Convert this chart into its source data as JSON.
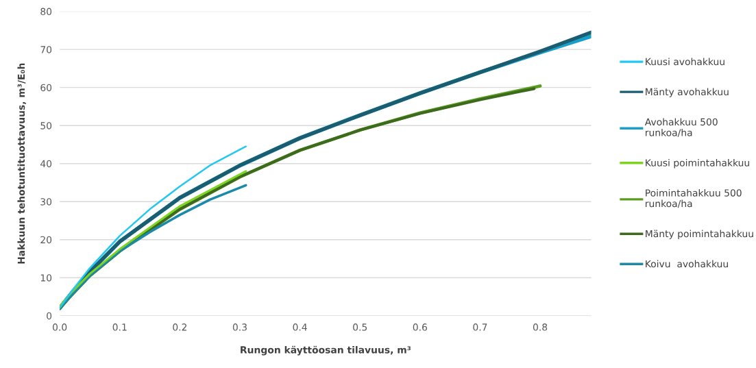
{
  "chart_data": {
    "type": "line",
    "xlabel": "Rungon käyttöosan tilavuus, m³",
    "ylabel": "Hakkuun tehotuntituottavuus, m³/E₀h",
    "xlim": [
      0,
      0.885
    ],
    "ylim": [
      0,
      80
    ],
    "xticks": [
      {
        "value": 0,
        "label": "0.0"
      },
      0.1,
      0.2,
      0.3,
      0.4,
      0.5,
      0.6,
      0.7,
      0.8
    ],
    "yticks": [
      0,
      10,
      20,
      30,
      40,
      50,
      60,
      70,
      80
    ],
    "grid": "y",
    "legend": "right",
    "marker": "none",
    "line_style": "solid",
    "series": [
      {
        "name": "Kuusi avohakkuu",
        "color": "#22c8f0",
        "x": [
          0,
          0.02,
          0.05,
          0.1,
          0.15,
          0.2,
          0.25,
          0.31
        ],
        "values": [
          2,
          6.5,
          12.5,
          21,
          28,
          34,
          39.5,
          44.5
        ]
      },
      {
        "name": "Mänty avohakkuu",
        "color": "#1a5c70",
        "x": [
          0,
          0.02,
          0.05,
          0.1,
          0.2,
          0.3,
          0.4,
          0.5,
          0.6,
          0.7,
          0.8,
          0.885
        ],
        "values": [
          2,
          6,
          11.5,
          19.5,
          31,
          39.5,
          46.7,
          52.7,
          58.5,
          64,
          69.5,
          74.5
        ]
      },
      {
        "name": "Avohakkuu 500 runkoa/ha",
        "color": "#1aa0c8",
        "x": [
          0,
          0.02,
          0.05,
          0.1,
          0.2,
          0.3,
          0.4,
          0.5,
          0.6,
          0.7,
          0.8,
          0.885
        ],
        "values": [
          2,
          6,
          11.5,
          19.5,
          31,
          39.5,
          46.7,
          52.7,
          58.5,
          64,
          69.2,
          73.5
        ]
      },
      {
        "name": "Kuusi poimintahakkuu",
        "color": "#7ed321",
        "x": [
          0,
          0.02,
          0.05,
          0.1,
          0.2,
          0.31
        ],
        "values": [
          2.5,
          6.2,
          11,
          17.5,
          28.8,
          38
        ]
      },
      {
        "name": "Poimintahakkuu 500 runkoa/ha",
        "color": "#5a9e1e",
        "x": [
          0,
          0.02,
          0.05,
          0.1,
          0.2,
          0.3,
          0.4,
          0.5,
          0.6,
          0.7,
          0.8
        ],
        "values": [
          2,
          5.5,
          10.5,
          17,
          28,
          36.5,
          43.5,
          48.8,
          53.3,
          57,
          60.4
        ]
      },
      {
        "name": "Mänty poimintahakkuu",
        "color": "#3d6b1e",
        "x": [
          0,
          0.02,
          0.05,
          0.1,
          0.2,
          0.3,
          0.4,
          0.5,
          0.6,
          0.7,
          0.79
        ],
        "values": [
          2,
          5.5,
          10.5,
          17,
          28,
          36.5,
          43.5,
          48.8,
          53.2,
          56.8,
          59.7
        ]
      },
      {
        "name": "Koivu  avohakkuu",
        "color": "#1a8aa8",
        "x": [
          0,
          0.02,
          0.05,
          0.1,
          0.15,
          0.2,
          0.25,
          0.31
        ],
        "values": [
          2,
          5.5,
          10.5,
          17,
          22,
          26.5,
          30.5,
          34.3
        ]
      }
    ]
  }
}
